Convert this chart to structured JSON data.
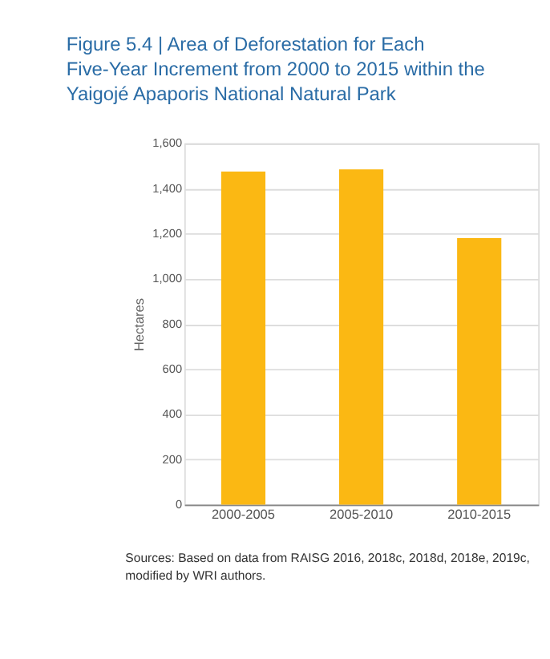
{
  "chart_data": {
    "type": "bar",
    "title": "Figure 5.4 | Area of Deforestation for Each Five-Year Increment from 2000 to 2015 within the Yaigojé Apaporis National Natural Park",
    "ylabel": "Hectares",
    "categories": [
      "2000-2005",
      "2005-2010",
      "2010-2015"
    ],
    "values": [
      1475,
      1485,
      1180
    ],
    "color": "#fbb813",
    "ylim": [
      0,
      1600
    ],
    "yticks": [
      0,
      200,
      400,
      600,
      800,
      {
        "value": 1000,
        "label": "1,000"
      },
      {
        "value": 1200,
        "label": "1,200"
      },
      {
        "value": 1400,
        "label": "1,400"
      },
      {
        "value": 1600,
        "label": "1,600"
      }
    ],
    "grid": "y",
    "annotations": [
      "Sources: Based on data from RAISG 2016, 2018c, 2018d, 2018e, 2019c, modified by WRI authors."
    ]
  }
}
